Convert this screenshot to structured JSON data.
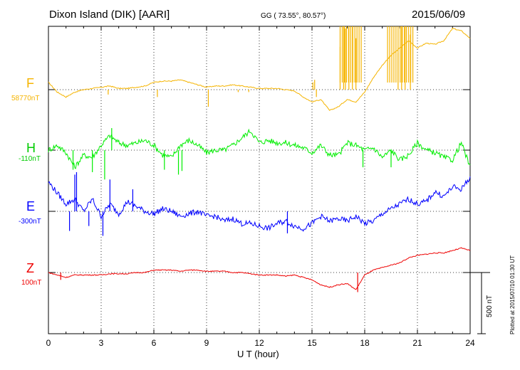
{
  "header": {
    "station": "Dixon Island (DIK)  [AARI]",
    "coords": "GG ( 73.55°,  80.57°)",
    "date": "2015/06/09"
  },
  "side_note": "Plotted at 2015/07/10 01:30 UT",
  "scale": {
    "label": "500 nT",
    "value_nT": 500
  },
  "chart_data": {
    "type": "line",
    "xlabel": "U T (hour)",
    "xlim": [
      0,
      24
    ],
    "xticks": [
      0,
      3,
      6,
      9,
      12,
      15,
      18,
      21,
      24
    ],
    "xtick_labels": [
      "0",
      "3",
      "6",
      "9",
      "12",
      "15",
      "18",
      "21",
      "24"
    ],
    "grid": "dotted",
    "series": [
      {
        "name": "F",
        "baseline": "58770nT",
        "color": "#f5b400",
        "x": [
          0,
          0.5,
          1,
          1.5,
          2,
          2.5,
          3,
          3.5,
          4,
          4.5,
          5,
          5.5,
          6,
          6.5,
          7,
          7.5,
          8,
          8.5,
          9,
          9.5,
          10,
          10.5,
          11,
          11.5,
          12,
          12.5,
          13,
          13.5,
          14,
          14.5,
          15,
          15.5,
          16,
          16.5,
          17,
          17.5,
          18,
          18.5,
          19,
          19.5,
          20,
          20.5,
          21,
          21.5,
          22,
          22.5,
          23,
          23.5,
          24
        ],
        "y": [
          60,
          -20,
          -60,
          -20,
          0,
          10,
          20,
          30,
          10,
          10,
          20,
          30,
          60,
          70,
          70,
          80,
          60,
          40,
          20,
          30,
          30,
          40,
          30,
          20,
          10,
          10,
          10,
          0,
          -10,
          -60,
          -100,
          -80,
          -170,
          -140,
          -80,
          -100,
          -20,
          100,
          200,
          280,
          340,
          400,
          340,
          380,
          370,
          400,
          500,
          480,
          420
        ],
        "spikes": [
          [
            15.05,
            60
          ],
          [
            15.15,
            80
          ],
          [
            15.25,
            -60
          ],
          [
            16.6,
            350
          ],
          [
            16.8,
            700
          ],
          [
            16.9,
            500
          ],
          [
            17.1,
            600
          ],
          [
            17.3,
            800
          ],
          [
            17.5,
            420
          ],
          [
            19.9,
            300
          ],
          [
            20.1,
            700
          ],
          [
            20.3,
            750
          ],
          [
            20.6,
            450
          ],
          [
            3.4,
            -40
          ],
          [
            6.2,
            -60
          ],
          [
            9.1,
            -140
          ],
          [
            10.8,
            -20
          ],
          [
            11.4,
            -20
          ]
        ]
      },
      {
        "name": "H",
        "baseline": "-110nT",
        "color": "#00ee00",
        "x": [
          0,
          0.5,
          1,
          1.5,
          2,
          2.5,
          3,
          3.5,
          4,
          4.5,
          5,
          5.5,
          6,
          6.5,
          7,
          7.5,
          8,
          8.5,
          9,
          9.5,
          10,
          10.5,
          11,
          11.5,
          12,
          12.5,
          13,
          13.5,
          14,
          14.5,
          15,
          15.5,
          16,
          16.5,
          17,
          17.5,
          18,
          18.5,
          19,
          19.5,
          20,
          20.5,
          21,
          21.5,
          22,
          22.5,
          23,
          23.5,
          24
        ],
        "y": [
          0,
          40,
          -20,
          -140,
          -40,
          -60,
          40,
          120,
          60,
          40,
          60,
          80,
          40,
          -40,
          -60,
          40,
          80,
          40,
          -20,
          0,
          0,
          40,
          100,
          160,
          60,
          80,
          60,
          60,
          40,
          20,
          -20,
          40,
          -40,
          -40,
          60,
          40,
          0,
          20,
          -60,
          0,
          -80,
          -40,
          60,
          0,
          -20,
          -60,
          -80,
          60,
          -140
        ],
        "spikes": [
          [
            1.4,
            -160
          ],
          [
            2.5,
            -180
          ],
          [
            3.2,
            -240
          ],
          [
            3.6,
            180
          ],
          [
            6.6,
            -160
          ],
          [
            7.4,
            -200
          ],
          [
            7.6,
            -170
          ],
          [
            17.9,
            -140
          ],
          [
            19.5,
            -140
          ]
        ]
      },
      {
        "name": "E",
        "baseline": "-300nT",
        "color": "#0000ff",
        "x": [
          0,
          0.5,
          1,
          1.5,
          2,
          2.5,
          3,
          3.5,
          4,
          4.5,
          5,
          5.5,
          6,
          6.5,
          7,
          7.5,
          8,
          8.5,
          9,
          9.5,
          10,
          10.5,
          11,
          11.5,
          12,
          12.5,
          13,
          13.5,
          14,
          14.5,
          15,
          15.5,
          16,
          16.5,
          17,
          17.5,
          18,
          18.5,
          19,
          19.5,
          20,
          20.5,
          21,
          21.5,
          22,
          22.5,
          23,
          23.5,
          24
        ],
        "y": [
          240,
          150,
          60,
          100,
          0,
          100,
          -40,
          60,
          -20,
          80,
          40,
          0,
          -20,
          20,
          0,
          -40,
          -20,
          0,
          -40,
          -40,
          -80,
          -60,
          -100,
          -100,
          -120,
          -140,
          -100,
          -80,
          -120,
          -140,
          -100,
          -40,
          -80,
          -60,
          -80,
          -40,
          -100,
          -80,
          -20,
          20,
          60,
          100,
          60,
          80,
          160,
          120,
          200,
          180,
          280
        ],
        "spikes": [
          [
            1.2,
            -160
          ],
          [
            1.5,
            300
          ],
          [
            1.6,
            320
          ],
          [
            2.3,
            -120
          ],
          [
            3.1,
            -200
          ],
          [
            3.5,
            260
          ],
          [
            4.8,
            180
          ],
          [
            13.6,
            -180
          ]
        ]
      },
      {
        "name": "Z",
        "baseline": "100nT",
        "color": "#ee0000",
        "x": [
          0,
          0.5,
          1,
          1.5,
          2,
          2.5,
          3,
          3.5,
          4,
          4.5,
          5,
          5.5,
          6,
          6.5,
          7,
          7.5,
          8,
          8.5,
          9,
          9.5,
          10,
          10.5,
          11,
          11.5,
          12,
          12.5,
          13,
          13.5,
          14,
          14.5,
          15,
          15.5,
          16,
          16.5,
          17,
          17.5,
          18,
          18.5,
          19,
          19.5,
          20,
          20.5,
          21,
          21.5,
          22,
          22.5,
          23,
          23.5,
          24
        ],
        "y": [
          0,
          -20,
          -40,
          -20,
          -20,
          -20,
          -20,
          -10,
          -10,
          -10,
          0,
          0,
          20,
          20,
          20,
          10,
          20,
          20,
          10,
          10,
          10,
          0,
          0,
          -10,
          -20,
          -20,
          -20,
          -30,
          -20,
          -40,
          -60,
          -100,
          -120,
          -100,
          -90,
          -140,
          -20,
          20,
          40,
          60,
          80,
          120,
          140,
          150,
          160,
          160,
          180,
          200,
          180
        ],
        "spikes": [
          [
            0.7,
            -60
          ],
          [
            17.6,
            -160
          ]
        ]
      }
    ]
  }
}
